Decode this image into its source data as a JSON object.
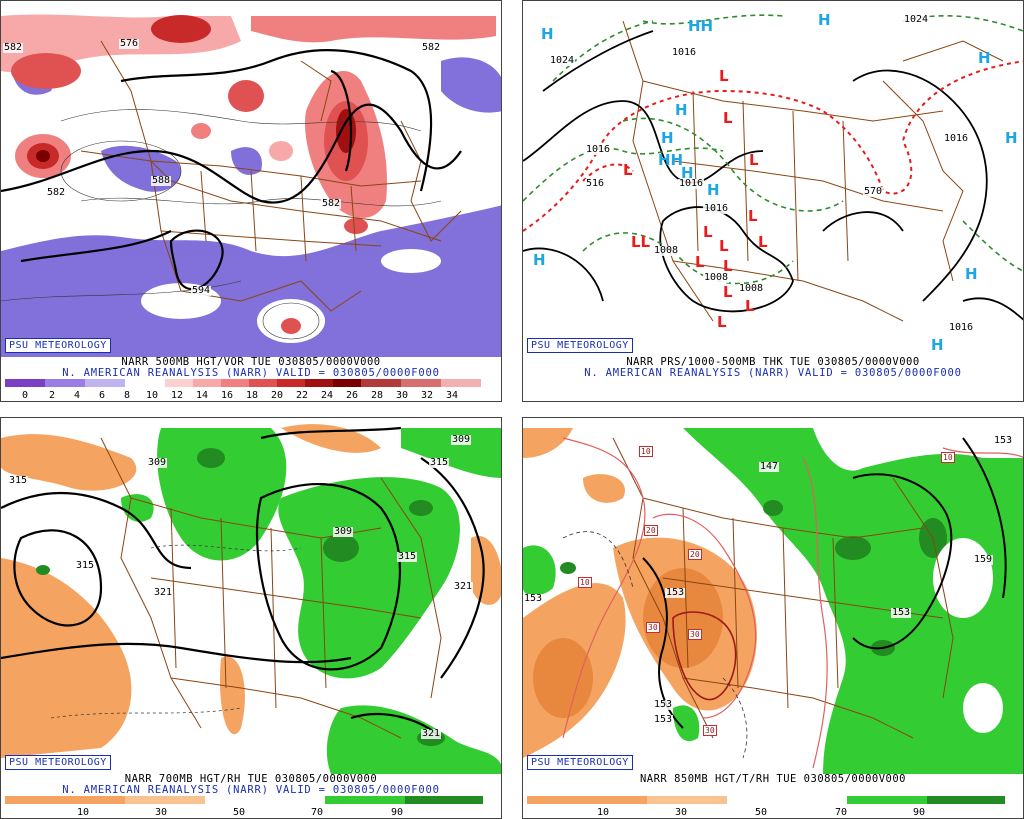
{
  "panels": {
    "vor": {
      "credit": "PSU METEOROLOGY",
      "title_line1": "NARR 500MB HGT/VOR TUE 030805/0000V000",
      "title_line2": "N. AMERICAN REANALYSIS (NARR) VALID = 030805/0000F000",
      "colorbar_ticks": [
        "0",
        "2",
        "4",
        "6",
        "8",
        "10",
        "12",
        "14",
        "16",
        "18",
        "20",
        "22",
        "24",
        "26",
        "28",
        "30",
        "32",
        "34"
      ],
      "contour_labels": [
        "582",
        "576",
        "582",
        "582",
        "588",
        "582",
        "594"
      ]
    },
    "thk": {
      "credit": "PSU METEOROLOGY",
      "title_line1": "NARR PRS/1000-500MB THK TUE 030805/0000V000",
      "title_line2": "N. AMERICAN REANALYSIS (NARR) VALID = 030805/0000F000",
      "contour_labels": [
        "1024",
        "1024",
        "1016",
        "1016",
        "1016",
        "1016",
        "1016",
        "570",
        "516",
        "1008",
        "1008",
        "1008",
        "1016"
      ]
    },
    "rh700": {
      "credit": "PSU METEOROLOGY",
      "title_line1": "NARR 700MB HGT/RH TUE 030805/0000V000",
      "title_line2": "N. AMERICAN REANALYSIS (NARR) VALID = 030805/0000F000",
      "colorbar_ticks": [
        "10",
        "30",
        "50",
        "70",
        "90"
      ],
      "contour_labels": [
        "309",
        "309",
        "315",
        "315",
        "315",
        "315",
        "321",
        "321",
        "309",
        "321"
      ]
    },
    "t850": {
      "credit": "PSU METEOROLOGY",
      "title_line1": "NARR 850MB HGT/T/RH TUE 030805/0000V000",
      "title_line2": "",
      "colorbar_ticks": [
        "10",
        "30",
        "50",
        "70",
        "90"
      ],
      "contour_labels": [
        "153",
        "153",
        "153",
        "153",
        "153",
        "153",
        "159",
        "147",
        "153"
      ],
      "temp_labels": [
        "10",
        "10",
        "10",
        "20",
        "20",
        "30",
        "30",
        "30"
      ]
    }
  },
  "colors": {
    "vor_positive": [
      "#f7a9a9",
      "#f07f7f",
      "#e05252",
      "#c82a2a",
      "#a01010",
      "#7a0000",
      "#b23a3a",
      "#f3b0b0"
    ],
    "vor_negative": "#7b68d9",
    "rh_dry": "#f4a460",
    "rh_moist": "#33cc33",
    "rh_very_moist": "#228b22",
    "high_symbol": "#1ea5e6",
    "low_symbol": "#e81c1c",
    "borders": "#8b4513",
    "credit_text": "#1a2fb0"
  }
}
